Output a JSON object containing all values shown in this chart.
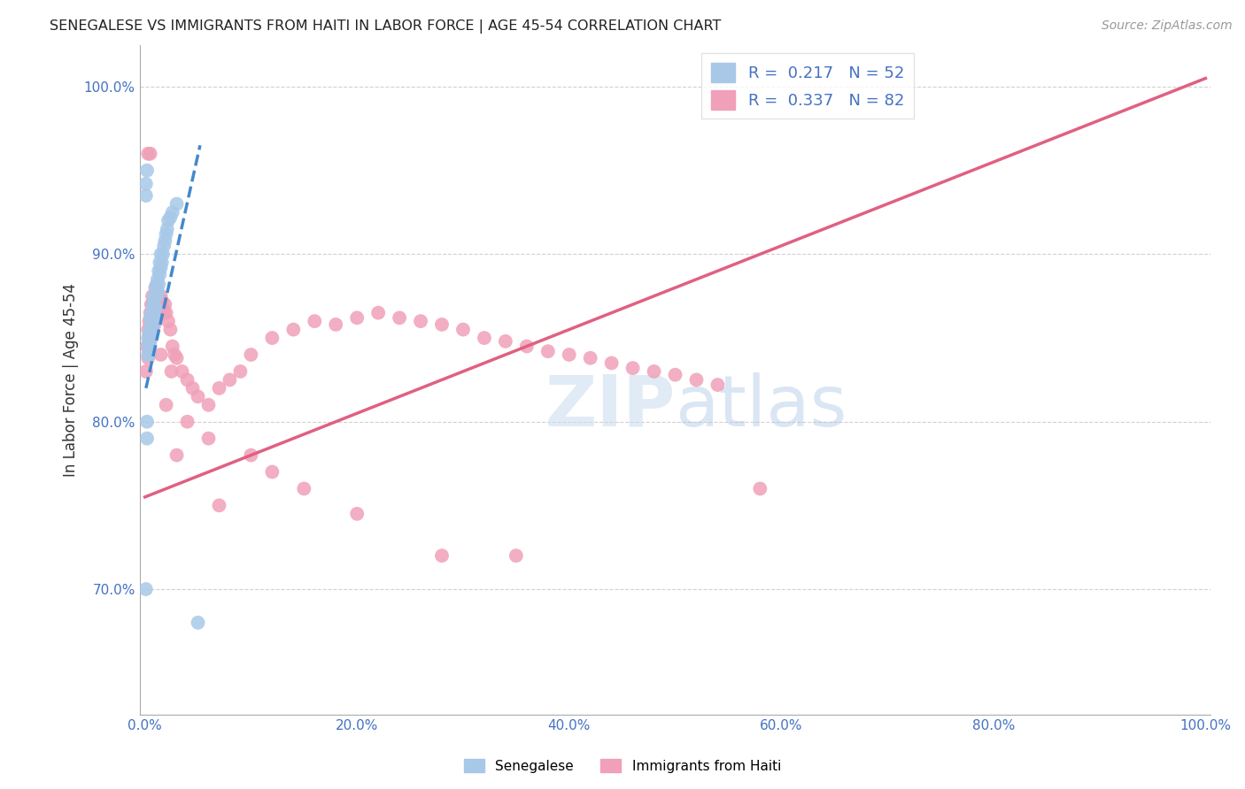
{
  "title": "SENEGALESE VS IMMIGRANTS FROM HAITI IN LABOR FORCE | AGE 45-54 CORRELATION CHART",
  "source": "Source: ZipAtlas.com",
  "xlabel": "",
  "ylabel": "In Labor Force | Age 45-54",
  "xlim": [
    -0.005,
    1.005
  ],
  "ylim": [
    0.625,
    1.025
  ],
  "yticks": [
    0.7,
    0.8,
    0.9,
    1.0
  ],
  "ytick_labels": [
    "70.0%",
    "80.0%",
    "90.0%",
    "100.0%"
  ],
  "xticks": [
    0.0,
    0.2,
    0.4,
    0.6,
    0.8,
    1.0
  ],
  "xtick_labels": [
    "0.0%",
    "20.0%",
    "40.0%",
    "60.0%",
    "80.0%",
    "100.0%"
  ],
  "blue_color": "#A8C8E8",
  "pink_color": "#F0A0B8",
  "blue_label": "Senegalese",
  "pink_label": "Immigrants from Haiti",
  "blue_R": 0.217,
  "blue_N": 52,
  "pink_R": 0.337,
  "pink_N": 82,
  "blue_line_color": "#4488CC",
  "pink_line_color": "#E06080",
  "tick_color": "#4472C4",
  "watermark_zip": "ZIP",
  "watermark_atlas": "atlas",
  "background_color": "#FFFFFF",
  "grid_color": "#CCCCCC",
  "blue_x": [
    0.001,
    0.002,
    0.002,
    0.003,
    0.003,
    0.003,
    0.004,
    0.004,
    0.004,
    0.005,
    0.005,
    0.005,
    0.005,
    0.006,
    0.006,
    0.006,
    0.007,
    0.007,
    0.007,
    0.008,
    0.008,
    0.008,
    0.009,
    0.009,
    0.009,
    0.01,
    0.01,
    0.01,
    0.011,
    0.011,
    0.012,
    0.012,
    0.013,
    0.013,
    0.014,
    0.014,
    0.015,
    0.015,
    0.016,
    0.017,
    0.018,
    0.019,
    0.02,
    0.021,
    0.022,
    0.024,
    0.026,
    0.03,
    0.001,
    0.001,
    0.002,
    0.05
  ],
  "blue_y": [
    0.7,
    0.79,
    0.8,
    0.84,
    0.845,
    0.85,
    0.84,
    0.848,
    0.852,
    0.845,
    0.85,
    0.855,
    0.862,
    0.852,
    0.858,
    0.864,
    0.855,
    0.862,
    0.868,
    0.86,
    0.865,
    0.872,
    0.862,
    0.868,
    0.875,
    0.868,
    0.875,
    0.88,
    0.875,
    0.882,
    0.878,
    0.885,
    0.882,
    0.89,
    0.888,
    0.895,
    0.892,
    0.9,
    0.895,
    0.9,
    0.905,
    0.908,
    0.912,
    0.915,
    0.92,
    0.922,
    0.925,
    0.93,
    0.935,
    0.942,
    0.95,
    0.68
  ],
  "pink_x": [
    0.001,
    0.002,
    0.003,
    0.003,
    0.004,
    0.004,
    0.005,
    0.005,
    0.006,
    0.006,
    0.007,
    0.007,
    0.008,
    0.008,
    0.009,
    0.009,
    0.01,
    0.01,
    0.011,
    0.012,
    0.013,
    0.014,
    0.015,
    0.016,
    0.017,
    0.018,
    0.019,
    0.02,
    0.022,
    0.024,
    0.026,
    0.028,
    0.03,
    0.035,
    0.04,
    0.045,
    0.05,
    0.06,
    0.07,
    0.08,
    0.09,
    0.1,
    0.12,
    0.14,
    0.16,
    0.18,
    0.2,
    0.22,
    0.24,
    0.26,
    0.28,
    0.3,
    0.32,
    0.34,
    0.36,
    0.38,
    0.4,
    0.42,
    0.44,
    0.46,
    0.48,
    0.5,
    0.52,
    0.54,
    0.003,
    0.005,
    0.007,
    0.01,
    0.015,
    0.025,
    0.04,
    0.06,
    0.1,
    0.15,
    0.2,
    0.28,
    0.35,
    0.02,
    0.03,
    0.07,
    0.12,
    0.58
  ],
  "pink_y": [
    0.83,
    0.845,
    0.838,
    0.855,
    0.842,
    0.86,
    0.848,
    0.865,
    0.852,
    0.87,
    0.858,
    0.875,
    0.862,
    0.87,
    0.858,
    0.865,
    0.862,
    0.87,
    0.865,
    0.868,
    0.87,
    0.872,
    0.875,
    0.872,
    0.868,
    0.865,
    0.87,
    0.865,
    0.86,
    0.855,
    0.845,
    0.84,
    0.838,
    0.83,
    0.825,
    0.82,
    0.815,
    0.81,
    0.82,
    0.825,
    0.83,
    0.84,
    0.85,
    0.855,
    0.86,
    0.858,
    0.862,
    0.865,
    0.862,
    0.86,
    0.858,
    0.855,
    0.85,
    0.848,
    0.845,
    0.842,
    0.84,
    0.838,
    0.835,
    0.832,
    0.83,
    0.828,
    0.825,
    0.822,
    0.96,
    0.96,
    0.87,
    0.88,
    0.84,
    0.83,
    0.8,
    0.79,
    0.78,
    0.76,
    0.745,
    0.72,
    0.72,
    0.81,
    0.78,
    0.75,
    0.77,
    0.76
  ],
  "pink_trend_x0": 0.0,
  "pink_trend_y0": 0.755,
  "pink_trend_x1": 1.0,
  "pink_trend_y1": 1.005,
  "blue_trend_x0": 0.001,
  "blue_trend_y0": 0.82,
  "blue_trend_x1": 0.052,
  "blue_trend_y1": 0.965
}
